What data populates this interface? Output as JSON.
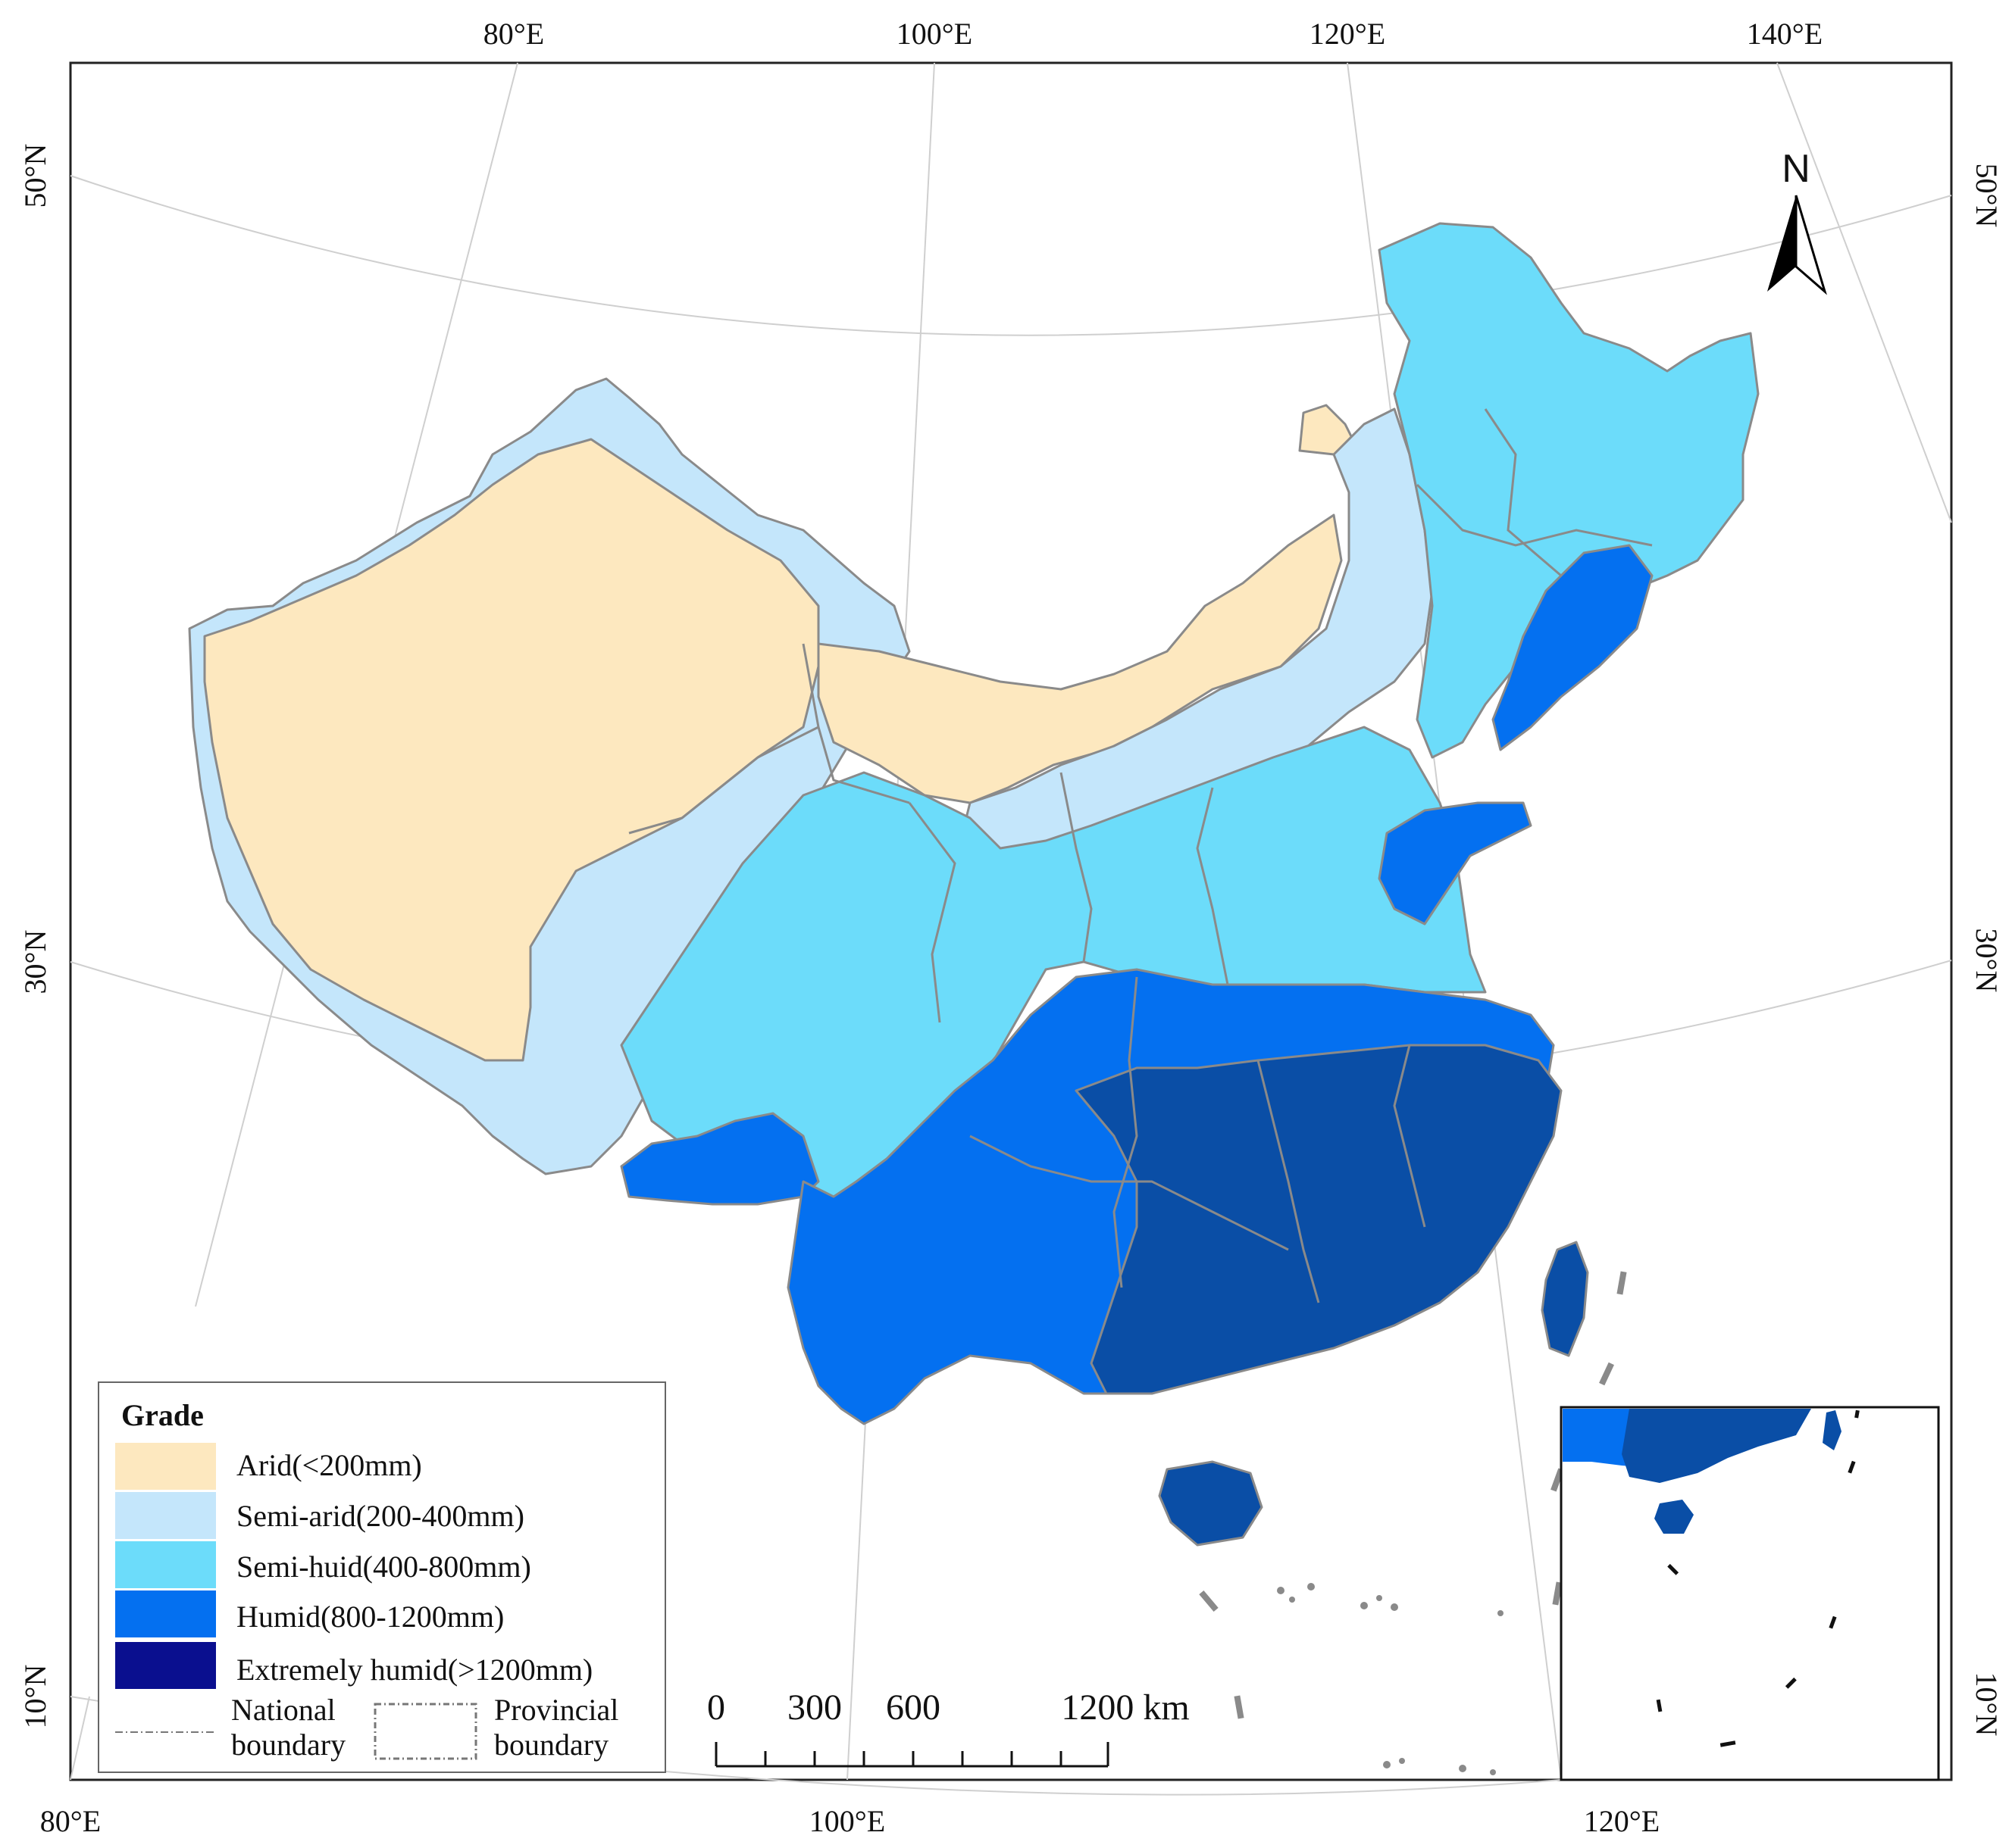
{
  "map": {
    "coordinate_labels": {
      "top": [
        "80°E",
        "100°E",
        "120°E",
        "140°E"
      ],
      "bottom": [
        "80°E",
        "100°E",
        "120°E"
      ],
      "left": [
        "50°N",
        "30°N",
        "10°N"
      ],
      "right": [
        "50°N",
        "30°N",
        "10°N"
      ]
    },
    "north_arrow_label": "N",
    "legend": {
      "title": "Grade",
      "items": [
        {
          "label": "Arid(<200mm)",
          "color": "#fde8bf"
        },
        {
          "label": "Semi-arid(200-400mm)",
          "color": "#c4e6fb"
        },
        {
          "label": "Semi-huid(400-800mm)",
          "color": "#6cdcfa"
        },
        {
          "label": "Humid(800-1200mm)",
          "color": "#0470f0"
        },
        {
          "label": "Extremely humid(>1200mm)",
          "color": "#0a0f8f"
        }
      ],
      "boundaries": {
        "national": "National boundary",
        "provincial": "Provincial boundary"
      }
    },
    "scale_bar": {
      "labels": [
        "0",
        "300",
        "600",
        "1200 km"
      ]
    },
    "colors": {
      "extremely_humid_region": "#0a4ea6",
      "boundary_line": "#8a8a8a",
      "graticule": "#cfcfcf"
    }
  }
}
